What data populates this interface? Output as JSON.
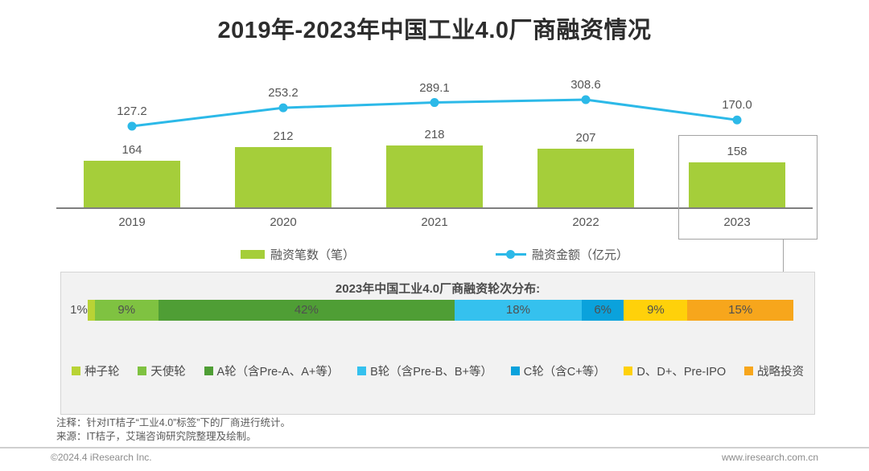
{
  "page": {
    "title": "2019年-2023年中国工业4.0厂商融资情况",
    "notes": [
      "注释：针对IT桔子“工业4.0”标签”下的厂商进行统计。",
      "来源：IT桔子，艾瑞咨询研究院整理及绘制。"
    ],
    "footer": {
      "copyright": "©2024.4 iResearch Inc.",
      "website": "www.iresearch.com.cn"
    }
  },
  "chart_data": [
    {
      "type": "bar",
      "title": "2019年-2023年中国工业4.0厂商融资情况",
      "categories": [
        "2019",
        "2020",
        "2021",
        "2022",
        "2023"
      ],
      "series": [
        {
          "name": "融资笔数（笔）",
          "type": "bar",
          "color": "#a5ce3a",
          "values": [
            164,
            212,
            218,
            207,
            158
          ],
          "labels": [
            "164",
            "212",
            "218",
            "207",
            "158"
          ]
        },
        {
          "name": "融资金额（亿元）",
          "type": "line",
          "color": "#2cb9e8",
          "values": [
            127.2,
            253.2,
            289.1,
            308.6,
            170.0
          ],
          "labels": [
            "127.2",
            "253.2",
            "289.1",
            "308.6",
            "170.0"
          ]
        }
      ],
      "highlight_category": "2023",
      "legend_position": "bottom",
      "grid": false,
      "xlabel": "",
      "ylabel": ""
    },
    {
      "type": "stacked-bar",
      "title": "2023年中国工业4.0厂商融资轮次分布:",
      "segments": [
        {
          "label": "种子轮",
          "pct": 1,
          "pct_label": "1%",
          "color": "#b9d335"
        },
        {
          "label": "天使轮",
          "pct": 9,
          "pct_label": "9%",
          "color": "#7fc241"
        },
        {
          "label": "A轮（含Pre-A、A+等）",
          "pct": 42,
          "pct_label": "42%",
          "color": "#4f9e35"
        },
        {
          "label": "B轮（含Pre-B、B+等）",
          "pct": 18,
          "pct_label": "18%",
          "color": "#35c1ee"
        },
        {
          "label": "C轮（含C+等）",
          "pct": 6,
          "pct_label": "6%",
          "color": "#0aa2dc"
        },
        {
          "label": "D、D+、Pre-IPO",
          "pct": 9,
          "pct_label": "9%",
          "color": "#ffd10a"
        },
        {
          "label": "战略投资",
          "pct": 15,
          "pct_label": "15%",
          "color": "#f7a61c"
        }
      ],
      "legend_position": "bottom"
    }
  ]
}
